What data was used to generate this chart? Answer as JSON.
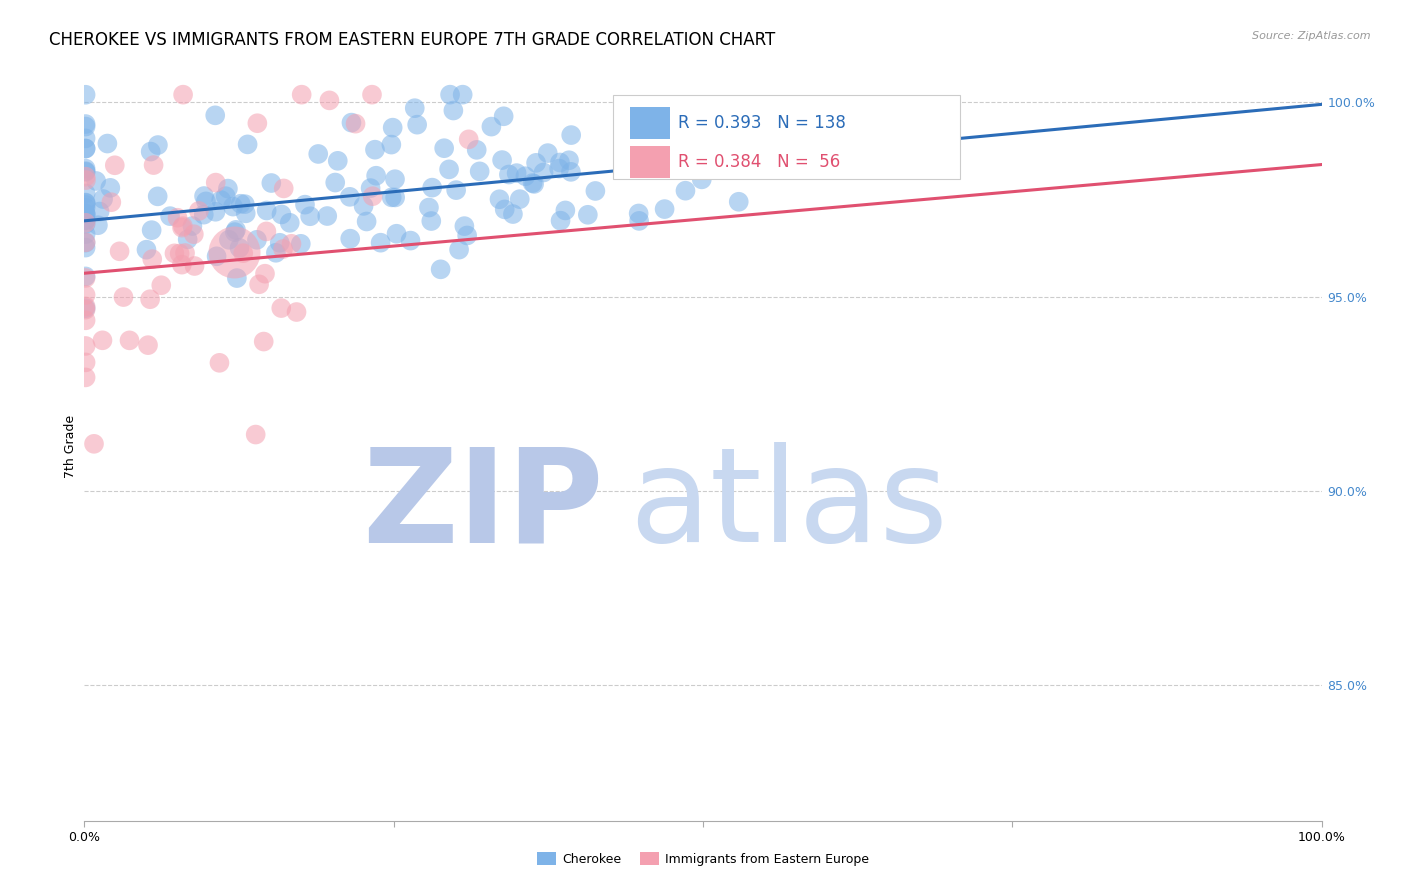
{
  "title": "CHEROKEE VS IMMIGRANTS FROM EASTERN EUROPE 7TH GRADE CORRELATION CHART",
  "source": "Source: ZipAtlas.com",
  "ylabel": "7th Grade",
  "ylabel_right_ticks": [
    "100.0%",
    "95.0%",
    "90.0%",
    "85.0%"
  ],
  "ylabel_right_vals": [
    1.0,
    0.95,
    0.9,
    0.85
  ],
  "xlim": [
    0.0,
    1.0
  ],
  "ylim": [
    0.815,
    1.008
  ],
  "legend_blue_r": "R = 0.393",
  "legend_blue_n": "N = 138",
  "legend_pink_r": "R = 0.384",
  "legend_pink_n": "N =  56",
  "legend_label_blue": "Cherokee",
  "legend_label_pink": "Immigrants from Eastern Europe",
  "blue_color": "#7EB3E8",
  "pink_color": "#F4A0B0",
  "blue_line_color": "#2B6CB8",
  "pink_line_color": "#E05070",
  "background_color": "#FFFFFF",
  "watermark_zip": "ZIP",
  "watermark_atlas": "atlas",
  "watermark_color_zip": "#B8C8E8",
  "watermark_color_atlas": "#C8D8F0",
  "grid_color": "#CCCCCC",
  "blue_line_x": [
    0.0,
    1.0
  ],
  "blue_line_y": [
    0.9695,
    0.9995
  ],
  "pink_line_x": [
    0.0,
    1.0
  ],
  "pink_line_y": [
    0.956,
    0.984
  ],
  "title_fontsize": 12,
  "axis_label_fontsize": 9,
  "tick_fontsize": 9,
  "legend_fontsize": 12,
  "dot_size": 200,
  "dot_alpha": 0.55
}
